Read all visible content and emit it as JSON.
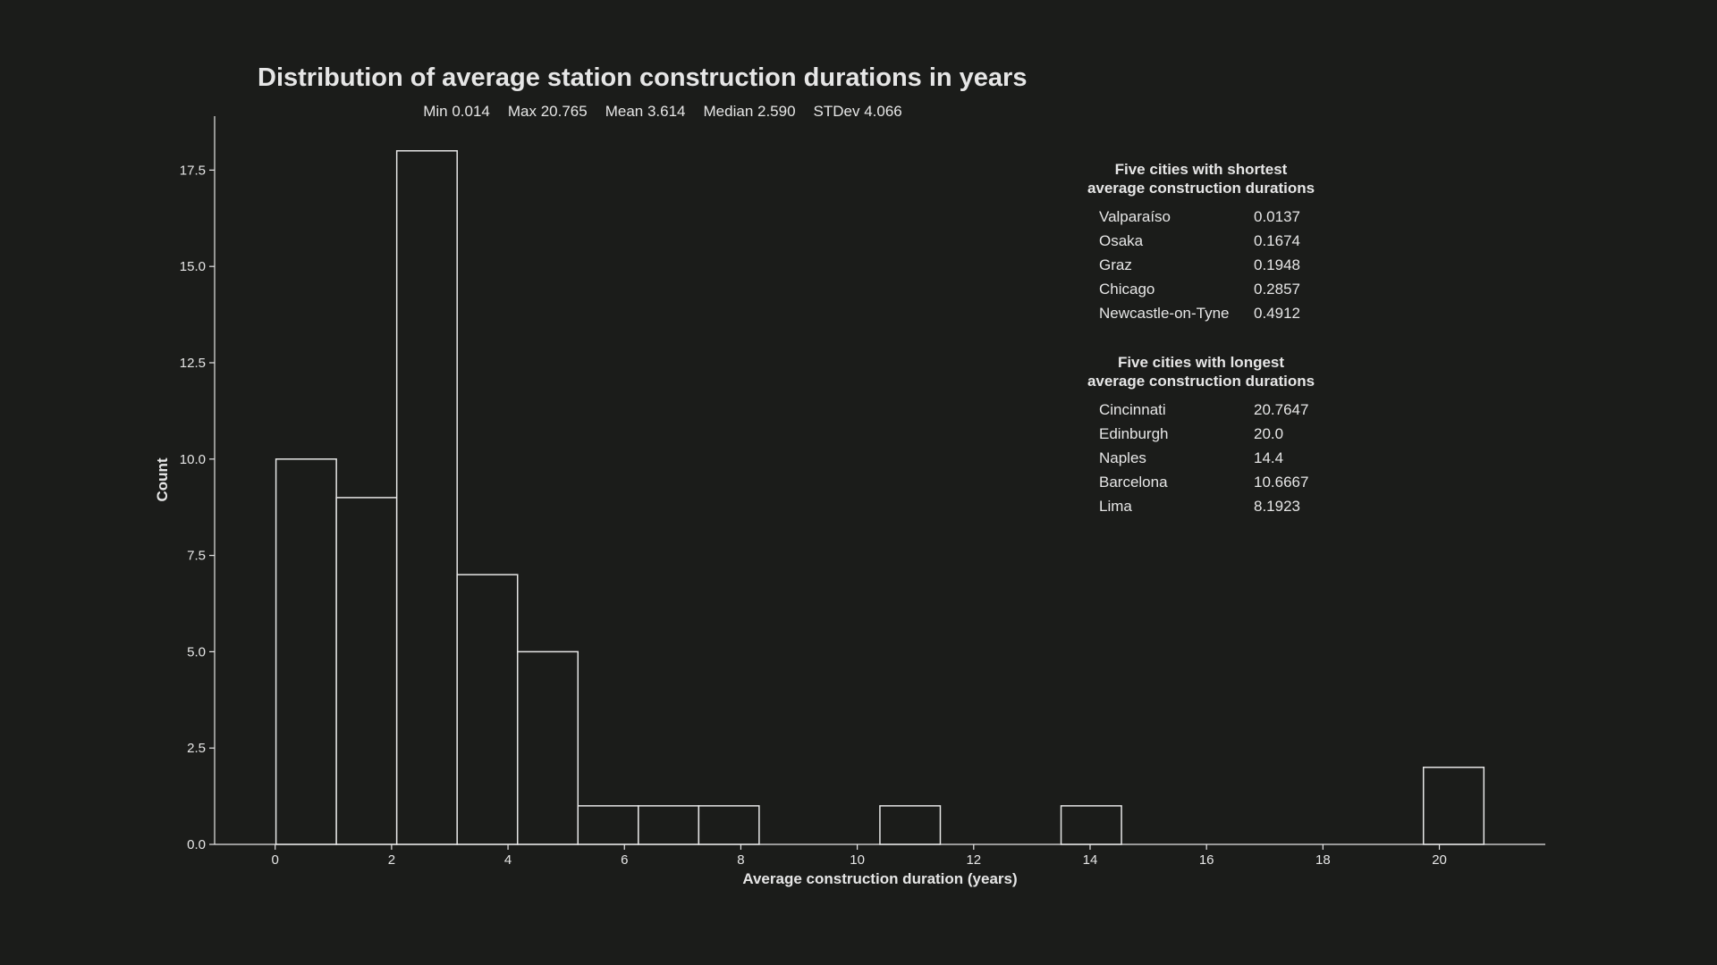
{
  "chart_data": {
    "type": "bar",
    "title": "Distribution of average station construction durations in years",
    "stats": [
      {
        "label": "Min",
        "value": "0.014"
      },
      {
        "label": "Max",
        "value": "20.765"
      },
      {
        "label": "Mean",
        "value": "3.614"
      },
      {
        "label": "Median",
        "value": "2.590"
      },
      {
        "label": "STDev",
        "value": "4.066"
      }
    ],
    "xlabel": "Average construction duration (years)",
    "ylabel": "Count",
    "xlim": [
      -1.04,
      21.82
    ],
    "ylim": [
      0,
      18.9
    ],
    "xticks": [
      0,
      2,
      4,
      6,
      8,
      10,
      12,
      14,
      16,
      18,
      20
    ],
    "xtick_labels": [
      "0",
      "2",
      "4",
      "6",
      "8",
      "10",
      "12",
      "14",
      "16",
      "18",
      "20"
    ],
    "yticks": [
      0,
      2.5,
      5,
      7.5,
      10,
      12.5,
      15,
      17.5
    ],
    "ytick_labels": [
      "0.0",
      "2.5",
      "5.0",
      "7.5",
      "10.0",
      "12.5",
      "15.0",
      "17.5"
    ],
    "bins": [
      {
        "start": 0.014,
        "end": 1.0515,
        "count": 10
      },
      {
        "start": 1.0515,
        "end": 2.089,
        "count": 9
      },
      {
        "start": 2.089,
        "end": 3.1265,
        "count": 18
      },
      {
        "start": 3.1265,
        "end": 4.164,
        "count": 7
      },
      {
        "start": 4.164,
        "end": 5.2015,
        "count": 5
      },
      {
        "start": 5.2015,
        "end": 6.239,
        "count": 1
      },
      {
        "start": 6.239,
        "end": 7.2765,
        "count": 1
      },
      {
        "start": 7.2765,
        "end": 8.314,
        "count": 1
      },
      {
        "start": 8.314,
        "end": 9.3515,
        "count": 0
      },
      {
        "start": 9.3515,
        "end": 10.389,
        "count": 0
      },
      {
        "start": 10.389,
        "end": 11.4265,
        "count": 1
      },
      {
        "start": 11.4265,
        "end": 12.464,
        "count": 0
      },
      {
        "start": 12.464,
        "end": 13.5015,
        "count": 0
      },
      {
        "start": 13.5015,
        "end": 14.539,
        "count": 1
      },
      {
        "start": 14.539,
        "end": 15.5765,
        "count": 0
      },
      {
        "start": 15.5765,
        "end": 16.614,
        "count": 0
      },
      {
        "start": 16.614,
        "end": 17.6515,
        "count": 0
      },
      {
        "start": 17.6515,
        "end": 18.689,
        "count": 0
      },
      {
        "start": 18.689,
        "end": 19.7265,
        "count": 0
      },
      {
        "start": 19.7265,
        "end": 20.765,
        "count": 2
      }
    ],
    "grid": false,
    "colors": {
      "background": "#1b1c1a",
      "foreground": "#e6e6e6",
      "bar_fill": "#1b1c1a",
      "bar_edge": "#e6e6e6"
    },
    "tables": [
      {
        "heading": [
          "Five cities with shortest",
          "average construction durations"
        ],
        "rows": [
          {
            "city": "Valparaíso",
            "value": "0.0137"
          },
          {
            "city": "Osaka",
            "value": "0.1674"
          },
          {
            "city": "Graz",
            "value": "0.1948"
          },
          {
            "city": "Chicago",
            "value": "0.2857"
          },
          {
            "city": "Newcastle-on-Tyne",
            "value": "0.4912"
          }
        ]
      },
      {
        "heading": [
          "Five cities with longest",
          "average construction durations"
        ],
        "rows": [
          {
            "city": "Cincinnati",
            "value": "20.7647"
          },
          {
            "city": "Edinburgh",
            "value": "20.0"
          },
          {
            "city": "Naples",
            "value": "14.4"
          },
          {
            "city": "Barcelona",
            "value": "10.6667"
          },
          {
            "city": "Lima",
            "value": "8.1923"
          }
        ]
      }
    ]
  }
}
